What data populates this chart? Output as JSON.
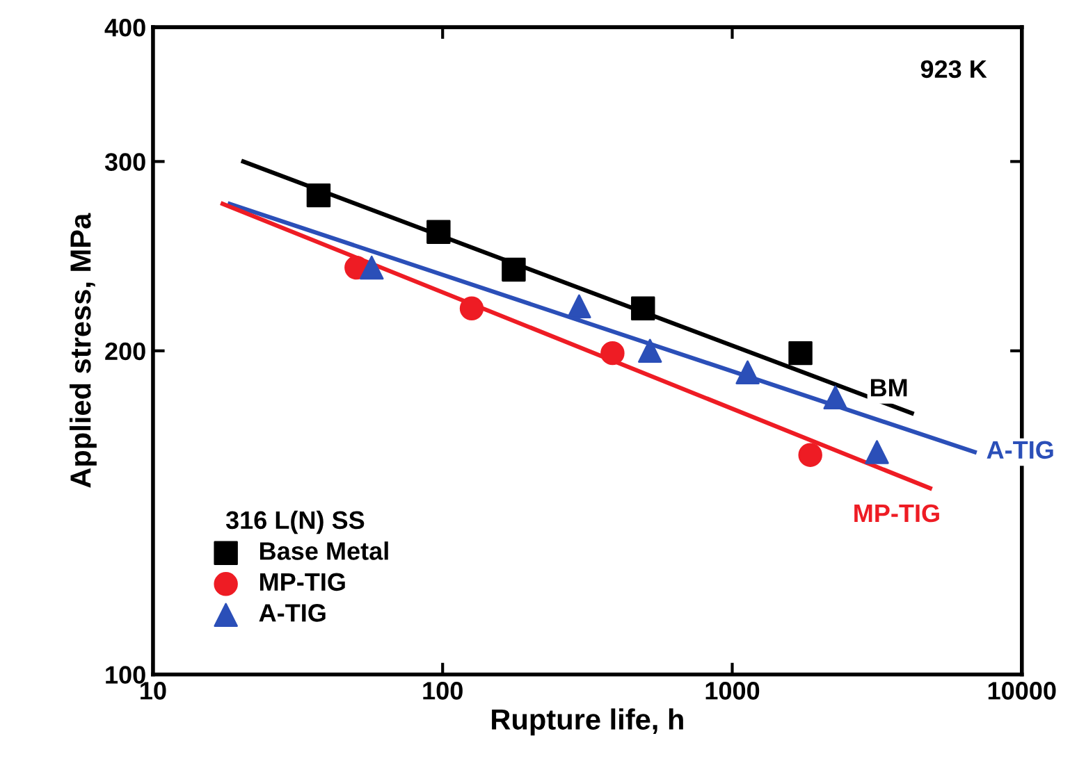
{
  "chart_data": {
    "type": "scatter",
    "xlabel": "Rupture life, h",
    "ylabel": "Applied stress, MPa",
    "legend_title": "316 L(N) SS",
    "legend": "bottom left",
    "log": "xy",
    "grid": false,
    "xlim": [
      10,
      10000
    ],
    "xticks": [
      10,
      100,
      1000,
      10000
    ],
    "ylim": [
      100,
      400
    ],
    "yticks": [
      100,
      200,
      300,
      400
    ],
    "annotations": [
      "923 K"
    ],
    "series": [
      {
        "name": "Base Metal",
        "marker": "square",
        "color": "#000000",
        "x": [
          37.3,
          96.8,
          176,
          492,
          1720
        ],
        "values": [
          279,
          258,
          238,
          219,
          199
        ]
      },
      {
        "name": "MP-TIG",
        "marker": "circle",
        "color": "#ee1c24",
        "x": [
          50.4,
          126,
          386,
          1860
        ],
        "values": [
          239,
          219,
          199,
          160
        ]
      },
      {
        "name": "A-TIG",
        "marker": "triangle",
        "color": "#2b4fb8",
        "x": [
          56.9,
          296,
          520,
          1130,
          2270,
          3160
        ],
        "values": [
          239,
          220,
          200,
          191,
          181,
          161
        ]
      },
      {
        "name": "BM",
        "type": "line",
        "line_style": "solid",
        "color": "#000000",
        "x": [
          20.5,
          4170
        ],
        "values": [
          300,
          175
        ]
      },
      {
        "name": "A-TIG",
        "type": "line",
        "line_style": "solid",
        "color": "#2b4fb8",
        "x": [
          18.4,
          6870
        ],
        "values": [
          274,
          161
        ]
      },
      {
        "name": "MP-TIG",
        "type": "line",
        "line_style": "solid",
        "color": "#ee1c24",
        "x": [
          17.4,
          4820
        ],
        "values": [
          274,
          149
        ]
      }
    ]
  }
}
